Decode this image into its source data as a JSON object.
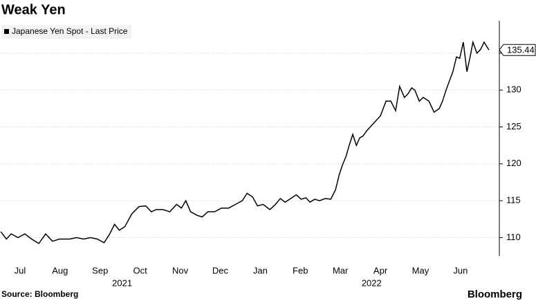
{
  "chart_data": {
    "type": "line",
    "title": "Weak Yen",
    "source": "Source: Bloomberg",
    "brand": "Bloomberg",
    "series": [
      {
        "name": "Japanese Yen Spot - Last Price",
        "color": "#000000",
        "x": [
          0.02,
          0.16,
          0.28,
          0.45,
          0.62,
          0.79,
          0.97,
          1.14,
          1.31,
          1.48,
          1.74,
          1.91,
          2.09,
          2.26,
          2.43,
          2.6,
          2.74,
          2.86,
          2.98,
          3.12,
          3.29,
          3.47,
          3.64,
          3.78,
          3.9,
          4.07,
          4.24,
          4.41,
          4.53,
          4.64,
          4.76,
          4.93,
          5.05,
          5.19,
          5.36,
          5.53,
          5.71,
          5.88,
          6.05,
          6.17,
          6.31,
          6.43,
          6.57,
          6.74,
          6.88,
          7.0,
          7.12,
          7.26,
          7.4,
          7.52,
          7.64,
          7.74,
          7.86,
          7.98,
          8.12,
          8.26,
          8.38,
          8.47,
          8.55,
          8.64,
          8.72,
          8.81,
          8.9,
          8.98,
          9.07,
          9.16,
          9.33,
          9.5,
          9.64,
          9.76,
          9.88,
          9.98,
          10.1,
          10.19,
          10.28,
          10.36,
          10.47,
          10.57,
          10.71,
          10.84,
          10.97,
          11.05,
          11.14,
          11.22,
          11.31,
          11.4,
          11.48,
          11.57,
          11.66,
          11.74,
          11.81,
          11.91,
          12.0,
          12.09,
          12.21
        ],
        "values": [
          110.8,
          109.8,
          110.5,
          110,
          110.5,
          109.8,
          109.2,
          110.5,
          109.5,
          109.8,
          109.8,
          110,
          109.8,
          110,
          109.8,
          109.3,
          110.5,
          111.8,
          111,
          111.5,
          113.2,
          114.2,
          114.3,
          113.5,
          113.8,
          113.8,
          113.5,
          114.5,
          114,
          115,
          113.5,
          113,
          112.8,
          113.5,
          113.5,
          114,
          114,
          114.5,
          115,
          116,
          115.5,
          114.3,
          114.5,
          113.8,
          114.5,
          115.3,
          114.8,
          115.3,
          115.8,
          115.2,
          115.4,
          114.8,
          115.2,
          115,
          115.3,
          115.2,
          116.5,
          118.5,
          119.8,
          121,
          122.5,
          124,
          122.5,
          123.5,
          123.8,
          124.5,
          125.5,
          126.5,
          128.5,
          128.5,
          127.2,
          130.5,
          129,
          129.5,
          130.3,
          130,
          128.5,
          129,
          128.5,
          127,
          127.5,
          128.5,
          130,
          131.2,
          132.5,
          134.5,
          134.3,
          136.5,
          132.5,
          134.5,
          136.5,
          135,
          135.5,
          136.5,
          135.44
        ],
        "last_value": 135.44
      }
    ],
    "xlim": [
      0,
      12.47
    ],
    "xticks": [
      {
        "value": 0.5,
        "label": "Jul"
      },
      {
        "value": 1.5,
        "label": "Aug"
      },
      {
        "value": 2.5,
        "label": "Sep"
      },
      {
        "value": 3.5,
        "label": "Oct"
      },
      {
        "value": 4.5,
        "label": "Nov"
      },
      {
        "value": 5.5,
        "label": "Dec"
      },
      {
        "value": 6.5,
        "label": "Jan"
      },
      {
        "value": 7.5,
        "label": "Feb"
      },
      {
        "value": 8.5,
        "label": "Mar"
      },
      {
        "value": 9.5,
        "label": "Apr"
      },
      {
        "value": 10.5,
        "label": "May"
      },
      {
        "value": 11.5,
        "label": "Jun"
      }
    ],
    "year_labels": [
      {
        "value": 3.05,
        "label": "2021"
      },
      {
        "value": 9.28,
        "label": "2022"
      }
    ],
    "ylim": [
      107.5,
      139.4
    ],
    "yticks": [
      110,
      115,
      120,
      125,
      130,
      135
    ],
    "grid": true
  }
}
